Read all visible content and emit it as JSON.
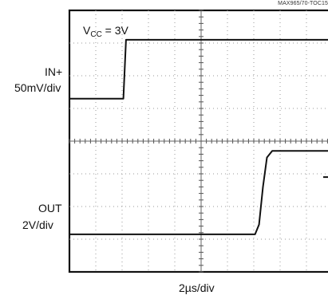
{
  "part_number": "MAX965/70-TOC15",
  "condition": {
    "prefix": "V",
    "subscript": "CC",
    "suffix": " = 3V"
  },
  "channels": {
    "in": {
      "name": "IN+",
      "scale": "50mV/div"
    },
    "out": {
      "name": "OUT",
      "scale": "2V/div"
    }
  },
  "time_scale": "2µs/div",
  "chart_data": {
    "type": "line",
    "title": "",
    "xlabel": "2µs/div",
    "ylabel": "",
    "grid": true,
    "x_divisions": 10,
    "y_divisions": 8,
    "xlim": [
      0,
      10
    ],
    "ylim": [
      0,
      8
    ],
    "series": [
      {
        "name": "IN+",
        "x": [
          0,
          2.05,
          2.15,
          10
        ],
        "y": [
          5.3,
          5.3,
          7.1,
          7.1
        ]
      },
      {
        "name": "OUT",
        "x": [
          0,
          7.05,
          7.2,
          7.35,
          7.5,
          7.7,
          10
        ],
        "y": [
          1.15,
          1.15,
          1.45,
          2.6,
          3.5,
          3.7,
          3.7
        ]
      }
    ]
  }
}
